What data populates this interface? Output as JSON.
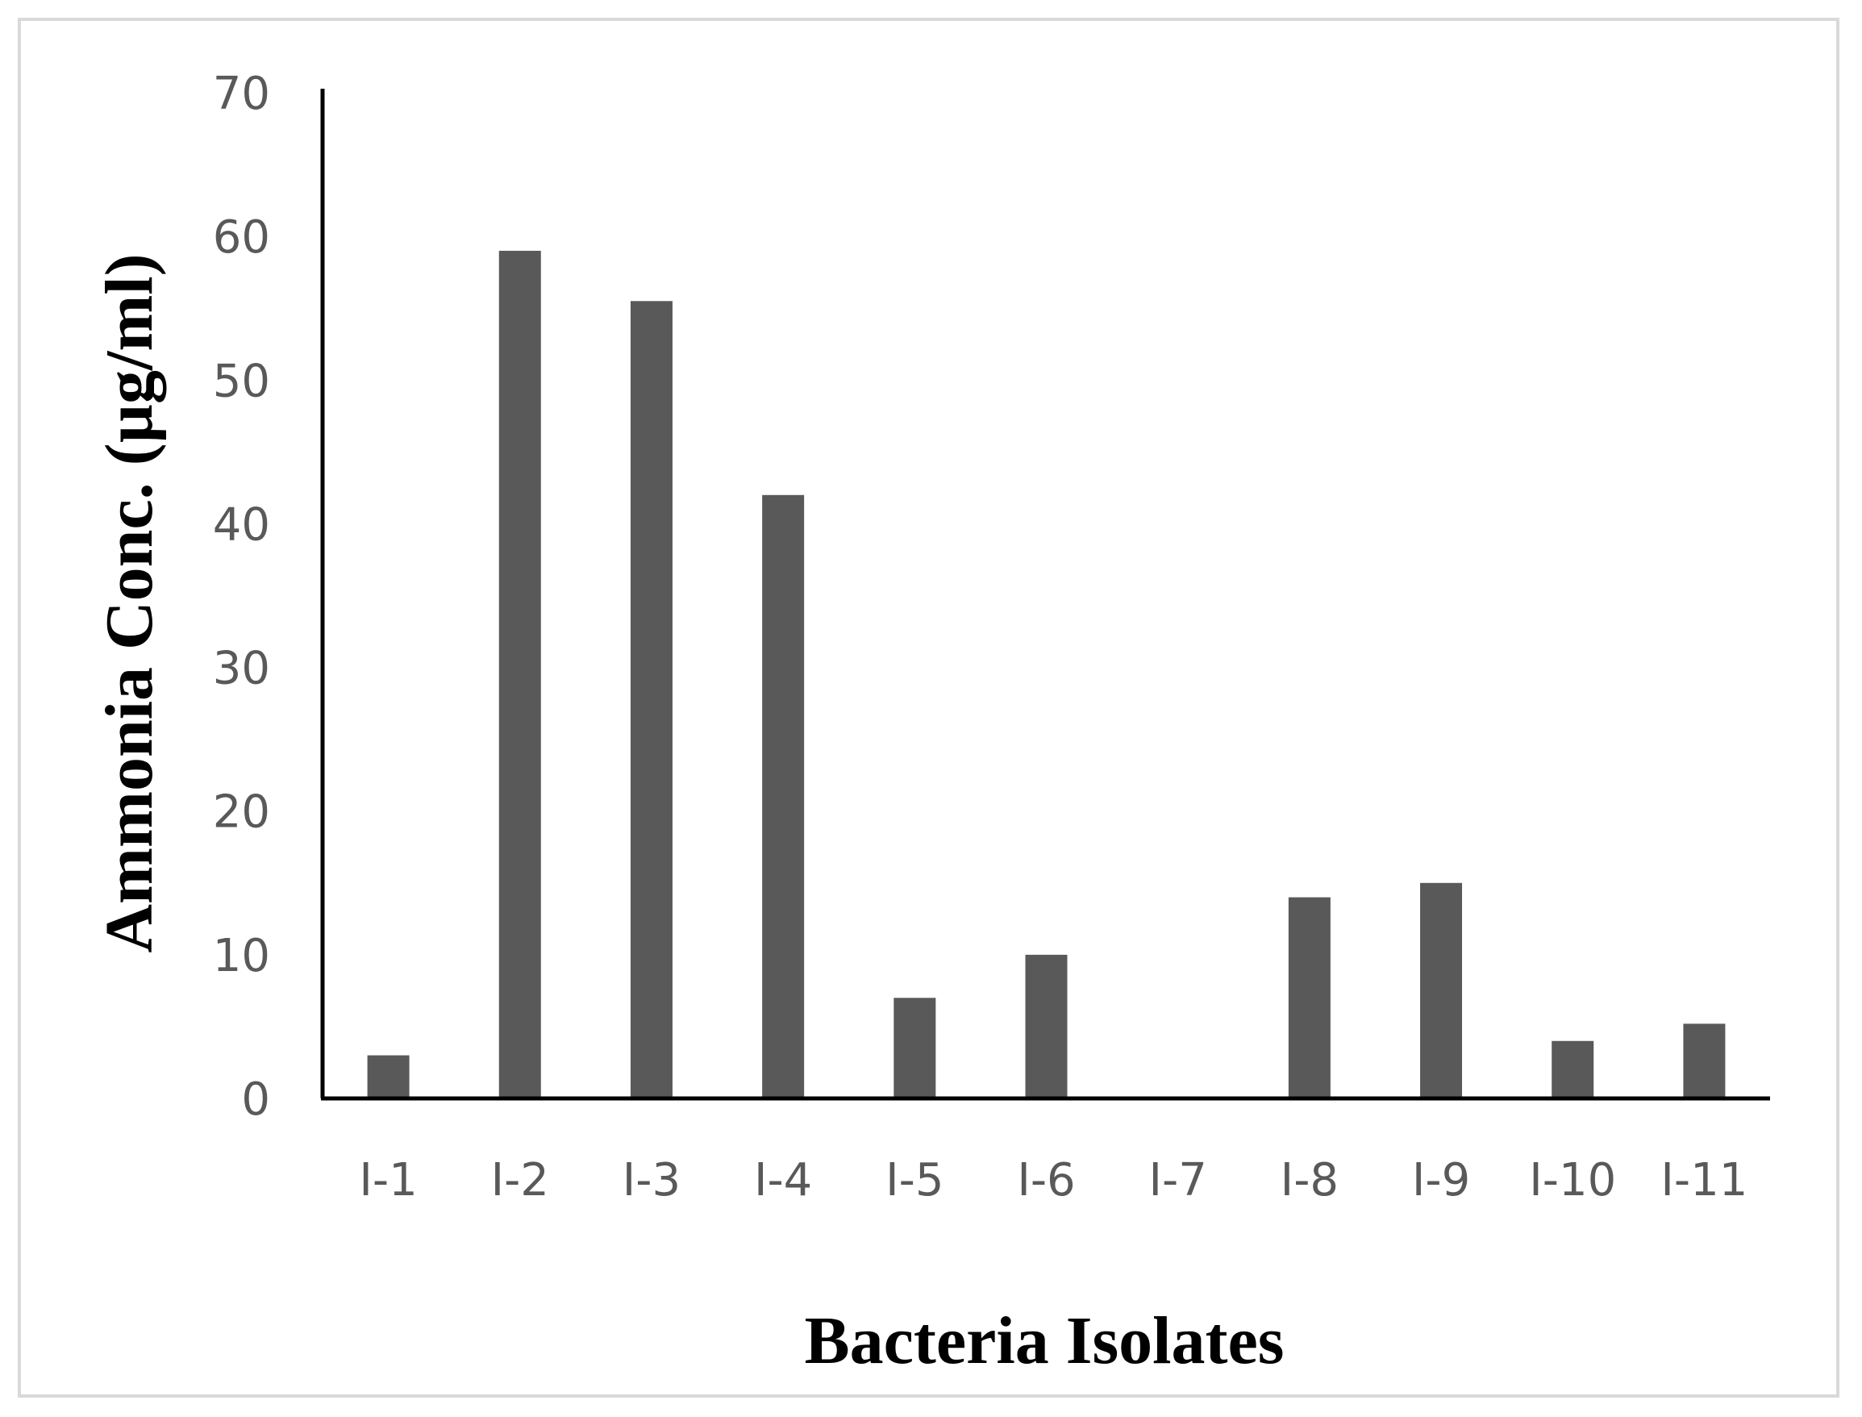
{
  "chart_data": {
    "type": "bar",
    "title": "",
    "xlabel": "Bacteria Isolates",
    "ylabel": "Ammonia Conc. (µg/ml)",
    "categories": [
      "I-1",
      "I-2",
      "I-3",
      "I-4",
      "I-5",
      "I-6",
      "I-7",
      "I-8",
      "I-9",
      "I-10",
      "I-11"
    ],
    "series": [
      {
        "values": [
          3,
          59,
          55.5,
          42,
          7,
          10,
          0,
          14,
          15,
          4,
          5.2
        ]
      }
    ],
    "ylim": [
      0,
      70
    ],
    "yticks": [
      "0",
      "10",
      "20",
      "30",
      "40",
      "50",
      "60",
      "70"
    ],
    "grid": false,
    "legend": "none",
    "bar_color": "#595959",
    "axis_color": "#000000",
    "tick_label_color": "#595959"
  }
}
